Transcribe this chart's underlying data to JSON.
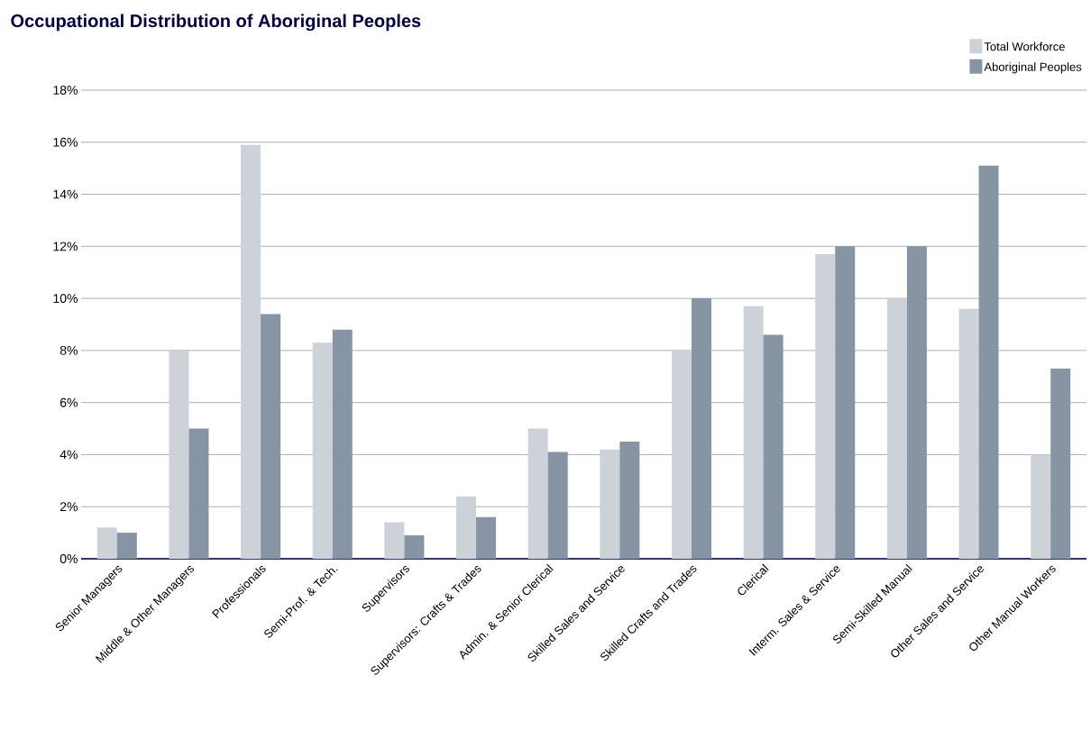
{
  "chart_data": {
    "type": "bar",
    "title": "Occupational Distribution of Aboriginal Peoples",
    "categories": [
      "Senior Managers",
      "Middle & Other Managers",
      "Professionals",
      "Semi-Prof. & Tech.",
      "Supervisors",
      "Supervisors: Crafts & Trades",
      "Admin. & Senior Clerical",
      "Skilled Sales and Service",
      "Skilled Crafts and Trades",
      "Clerical",
      "Interm. Sales & Service",
      "Semi-Skilled Manual",
      "Other Sales and Service",
      "Other Manual Workers"
    ],
    "series": [
      {
        "name": "Total Workforce",
        "color": "#cdd1d8",
        "values": [
          1.2,
          8.0,
          15.9,
          8.3,
          1.4,
          2.4,
          5.0,
          4.2,
          8.0,
          9.7,
          11.7,
          10.0,
          9.6,
          4.0
        ]
      },
      {
        "name": "Aboriginal Peoples",
        "color": "#8794a3",
        "values": [
          1.0,
          5.0,
          9.4,
          8.8,
          0.9,
          1.6,
          4.1,
          4.5,
          10.0,
          8.6,
          12.0,
          12.0,
          15.1,
          7.3
        ]
      }
    ],
    "ylim": [
      0,
      18
    ],
    "yticks": [
      {
        "value": 0,
        "label": "0%"
      },
      {
        "value": 2,
        "label": "2%"
      },
      {
        "value": 4,
        "label": "4%"
      },
      {
        "value": 6,
        "label": "6%"
      },
      {
        "value": 8,
        "label": "8%"
      },
      {
        "value": 10,
        "label": "10%"
      },
      {
        "value": 12,
        "label": "12%"
      },
      {
        "value": 14,
        "label": "14%"
      },
      {
        "value": 16,
        "label": "16%"
      },
      {
        "value": 18,
        "label": "18%"
      }
    ],
    "grid": "y",
    "legend": "top right"
  }
}
